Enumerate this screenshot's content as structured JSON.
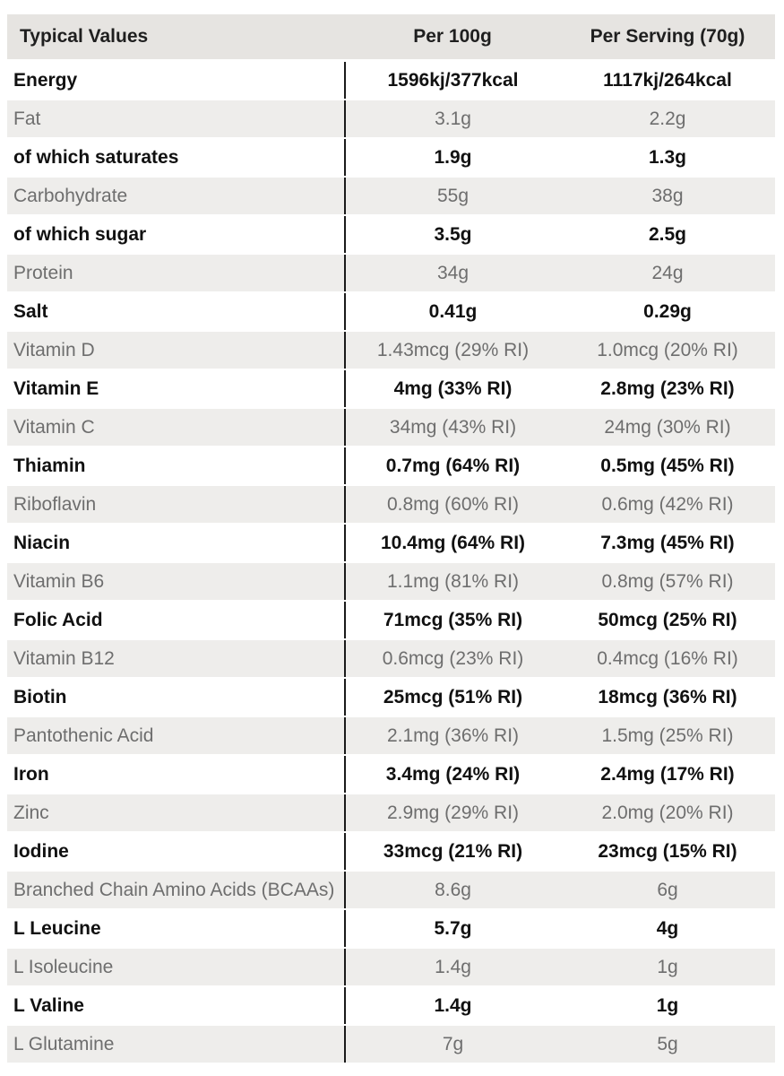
{
  "table": {
    "headers": [
      "Typical Values",
      "Per 100g",
      "Per Serving (70g)"
    ],
    "rows": [
      {
        "name": "Energy",
        "per100": "1596kj/377kcal",
        "perServing": "1117kj/264kcal",
        "bold": true
      },
      {
        "name": "Fat",
        "per100": "3.1g",
        "perServing": "2.2g",
        "bold": false
      },
      {
        "name": "of which saturates",
        "per100": "1.9g",
        "perServing": "1.3g",
        "bold": true
      },
      {
        "name": "Carbohydrate",
        "per100": "55g",
        "perServing": "38g",
        "bold": false
      },
      {
        "name": "of which sugar",
        "per100": "3.5g",
        "perServing": "2.5g",
        "bold": true
      },
      {
        "name": "Protein",
        "per100": "34g",
        "perServing": "24g",
        "bold": false
      },
      {
        "name": "Salt",
        "per100": "0.41g",
        "perServing": "0.29g",
        "bold": true
      },
      {
        "name": "Vitamin D",
        "per100": "1.43mcg (29% RI)",
        "perServing": "1.0mcg (20% RI)",
        "bold": false
      },
      {
        "name": "Vitamin E",
        "per100": "4mg (33% RI)",
        "perServing": "2.8mg (23% RI)",
        "bold": true
      },
      {
        "name": "Vitamin C",
        "per100": "34mg (43% RI)",
        "perServing": "24mg (30% RI)",
        "bold": false
      },
      {
        "name": "Thiamin",
        "per100": "0.7mg (64% RI)",
        "perServing": "0.5mg (45% RI)",
        "bold": true
      },
      {
        "name": "Riboflavin",
        "per100": "0.8mg (60% RI)",
        "perServing": "0.6mg (42% RI)",
        "bold": false
      },
      {
        "name": "Niacin",
        "per100": "10.4mg (64% RI)",
        "perServing": "7.3mg (45% RI)",
        "bold": true
      },
      {
        "name": "Vitamin B6",
        "per100": "1.1mg (81% RI)",
        "perServing": "0.8mg (57% RI)",
        "bold": false
      },
      {
        "name": "Folic Acid",
        "per100": "71mcg (35% RI)",
        "perServing": "50mcg (25% RI)",
        "bold": true
      },
      {
        "name": "Vitamin B12",
        "per100": "0.6mcg (23% RI)",
        "perServing": "0.4mcg (16% RI)",
        "bold": false
      },
      {
        "name": "Biotin",
        "per100": "25mcg (51% RI)",
        "perServing": "18mcg (36% RI)",
        "bold": true
      },
      {
        "name": "Pantothenic Acid",
        "per100": "2.1mg (36% RI)",
        "perServing": "1.5mg (25% RI)",
        "bold": false
      },
      {
        "name": "Iron",
        "per100": "3.4mg (24% RI)",
        "perServing": "2.4mg (17% RI)",
        "bold": true
      },
      {
        "name": "Zinc",
        "per100": "2.9mg (29% RI)",
        "perServing": "2.0mg (20% RI)",
        "bold": false
      },
      {
        "name": "Iodine",
        "per100": "33mcg (21% RI)",
        "perServing": "23mcg (15% RI)",
        "bold": true
      },
      {
        "name": "Branched Chain Amino Acids (BCAAs)",
        "per100": "8.6g",
        "perServing": "6g",
        "bold": false
      },
      {
        "name": "L Leucine",
        "per100": "5.7g",
        "perServing": "4g",
        "bold": true
      },
      {
        "name": "L Isoleucine",
        "per100": "1.4g",
        "perServing": "1g",
        "bold": false
      },
      {
        "name": "L Valine",
        "per100": "1.4g",
        "perServing": "1g",
        "bold": true
      },
      {
        "name": "L Glutamine",
        "per100": "7g",
        "perServing": "5g",
        "bold": false
      }
    ]
  }
}
